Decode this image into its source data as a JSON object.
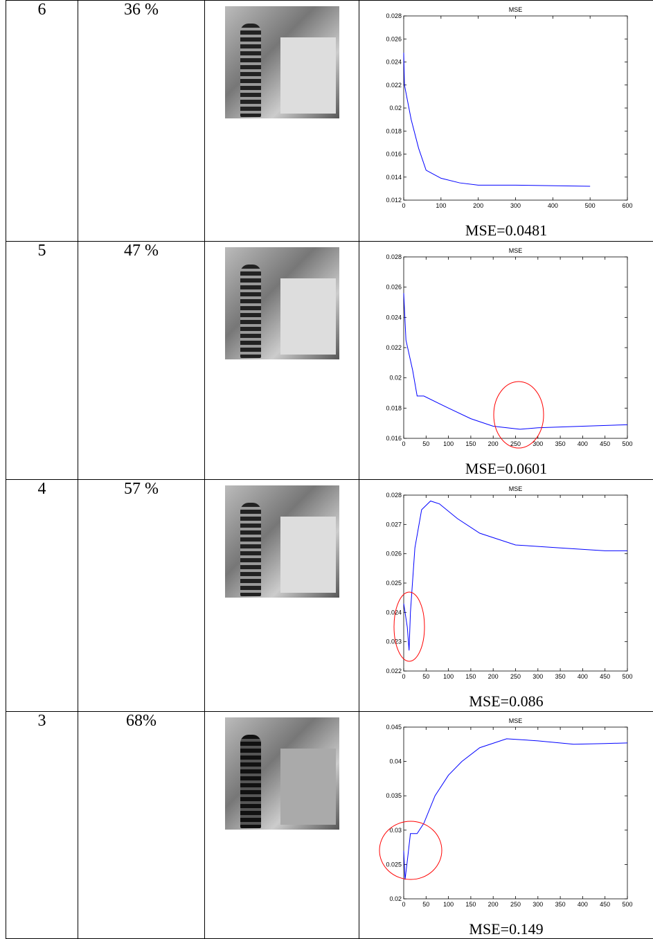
{
  "rows": [
    {
      "level": "6",
      "rate": "36 %",
      "caption": "MSE=0.0481",
      "chart": {
        "type": "line",
        "title": "MSE",
        "color": "#0000ff",
        "xlim": [
          0,
          600
        ],
        "xticks": [
          0,
          100,
          200,
          300,
          400,
          500,
          600
        ],
        "ylim": [
          0.012,
          0.028
        ],
        "yticks": [
          0.012,
          0.014,
          0.016,
          0.018,
          0.02,
          0.022,
          0.024,
          0.026,
          0.028
        ],
        "x": [
          0,
          2,
          20,
          40,
          60,
          100,
          150,
          200,
          300,
          500
        ],
        "values": [
          0.0248,
          0.022,
          0.019,
          0.0165,
          0.0146,
          0.0139,
          0.0135,
          0.0133,
          0.0133,
          0.0132
        ]
      }
    },
    {
      "level": "5",
      "rate": "47 %",
      "caption": "MSE=0.0601",
      "chart": {
        "type": "line",
        "title": "MSE",
        "color": "#0000ff",
        "xlim": [
          0,
          500
        ],
        "xticks": [
          0,
          50,
          100,
          150,
          200,
          250,
          300,
          350,
          400,
          450,
          500
        ],
        "ylim": [
          0.016,
          0.028
        ],
        "yticks": [
          0.016,
          0.018,
          0.02,
          0.022,
          0.024,
          0.026,
          0.028
        ],
        "x": [
          0,
          5,
          20,
          30,
          45,
          100,
          150,
          200,
          260,
          300,
          400,
          500
        ],
        "values": [
          0.0256,
          0.0225,
          0.0205,
          0.0188,
          0.0188,
          0.018,
          0.0173,
          0.0168,
          0.0166,
          0.0167,
          0.0168,
          0.0169
        ]
      }
    },
    {
      "level": "4",
      "rate": "57 %",
      "caption": "MSE=0.086",
      "chart": {
        "type": "line",
        "title": "MSE",
        "color": "#0000ff",
        "xlim": [
          0,
          500
        ],
        "xticks": [
          0,
          50,
          100,
          150,
          200,
          250,
          300,
          350,
          400,
          450,
          500
        ],
        "ylim": [
          0.022,
          0.028
        ],
        "yticks": [
          0.022,
          0.023,
          0.024,
          0.025,
          0.026,
          0.027,
          0.028
        ],
        "x": [
          0,
          5,
          8,
          12,
          15,
          25,
          40,
          60,
          80,
          120,
          170,
          250,
          350,
          450,
          500
        ],
        "values": [
          0.0243,
          0.0238,
          0.0235,
          0.0227,
          0.024,
          0.0262,
          0.0275,
          0.0278,
          0.0277,
          0.0272,
          0.0267,
          0.0263,
          0.0262,
          0.0261,
          0.0261
        ]
      }
    },
    {
      "level": "3",
      "rate": "68%",
      "caption": "MSE=0.149",
      "chart": {
        "type": "line",
        "title": "MSE",
        "color": "#0000ff",
        "xlim": [
          0,
          500
        ],
        "xticks": [
          0,
          50,
          100,
          150,
          200,
          250,
          300,
          350,
          400,
          450,
          500
        ],
        "ylim": [
          0.02,
          0.045
        ],
        "yticks": [
          0.02,
          0.025,
          0.03,
          0.035,
          0.04,
          0.045
        ],
        "x": [
          0,
          3,
          8,
          15,
          30,
          45,
          70,
          100,
          130,
          170,
          230,
          300,
          380,
          450,
          500
        ],
        "values": [
          0.027,
          0.0228,
          0.0255,
          0.0295,
          0.0295,
          0.031,
          0.035,
          0.038,
          0.04,
          0.042,
          0.0433,
          0.043,
          0.0425,
          0.0426,
          0.0427
        ]
      }
    }
  ]
}
